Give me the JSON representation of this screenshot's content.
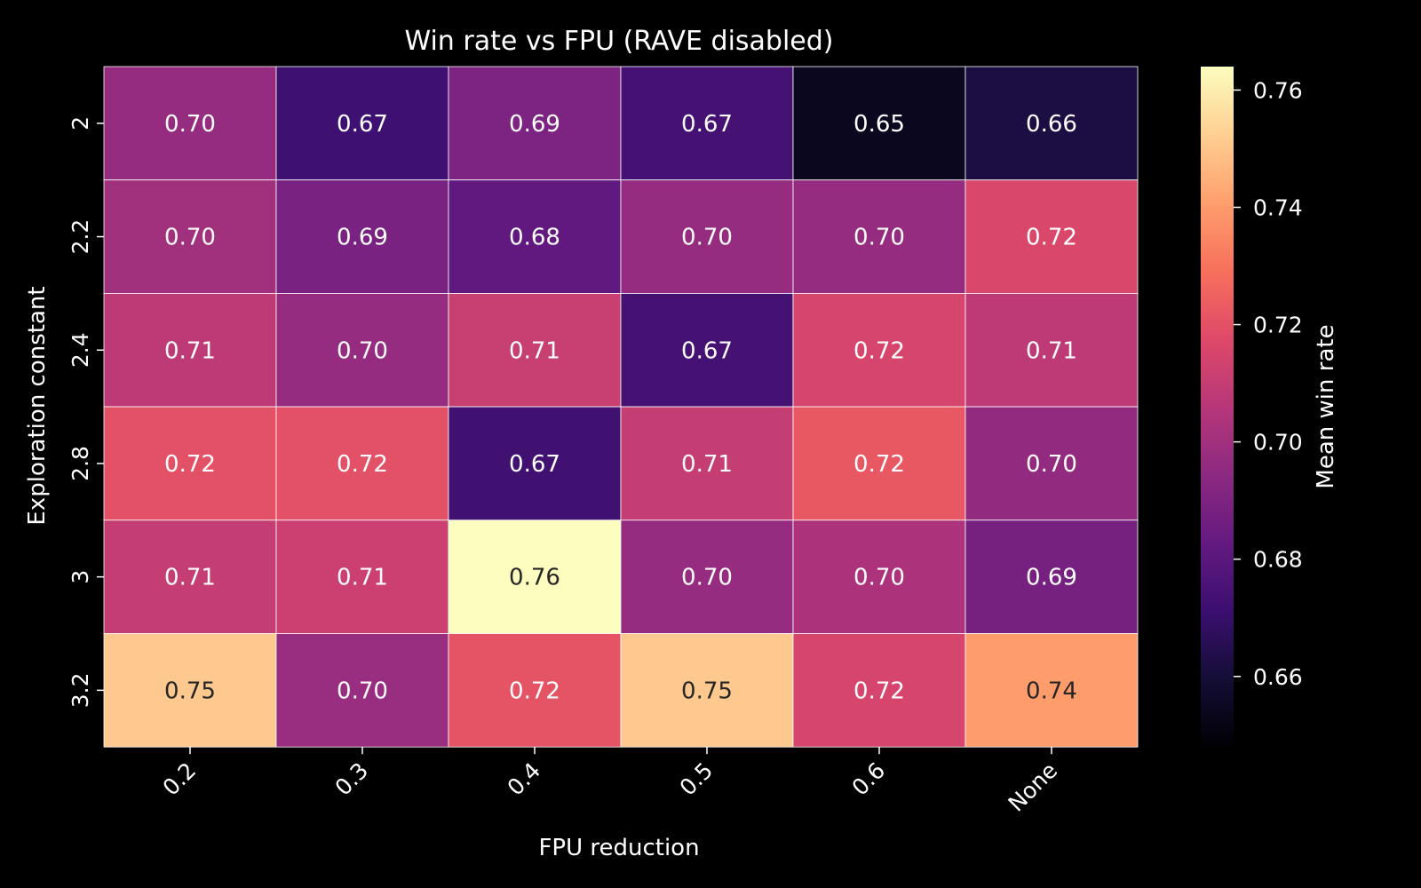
{
  "chart_data": {
    "type": "heatmap",
    "title": "Win rate vs FPU (RAVE disabled)",
    "xlabel": "FPU reduction",
    "ylabel": "Exploration constant",
    "x_categories": [
      "0.2",
      "0.3",
      "0.4",
      "0.5",
      "0.6",
      "None"
    ],
    "y_categories": [
      "2",
      "2.2",
      "2.4",
      "2.8",
      "3",
      "3.2"
    ],
    "values": [
      [
        0.697,
        0.672,
        0.69,
        0.674,
        0.654,
        0.662
      ],
      [
        0.7,
        0.689,
        0.682,
        0.697,
        0.697,
        0.716
      ],
      [
        0.708,
        0.697,
        0.711,
        0.674,
        0.715,
        0.708
      ],
      [
        0.72,
        0.72,
        0.673,
        0.71,
        0.722,
        0.696
      ],
      [
        0.71,
        0.712,
        0.764,
        0.697,
        0.703,
        0.688
      ],
      [
        0.751,
        0.698,
        0.721,
        0.751,
        0.715,
        0.74
      ]
    ],
    "value_labels": [
      [
        "0.70",
        "0.67",
        "0.69",
        "0.67",
        "0.65",
        "0.66"
      ],
      [
        "0.70",
        "0.69",
        "0.68",
        "0.70",
        "0.70",
        "0.72"
      ],
      [
        "0.71",
        "0.70",
        "0.71",
        "0.67",
        "0.72",
        "0.71"
      ],
      [
        "0.72",
        "0.72",
        "0.67",
        "0.71",
        "0.72",
        "0.70"
      ],
      [
        "0.71",
        "0.71",
        "0.76",
        "0.70",
        "0.70",
        "0.69"
      ],
      [
        "0.75",
        "0.70",
        "0.72",
        "0.75",
        "0.72",
        "0.74"
      ]
    ],
    "colorbar": {
      "label": "Mean win rate",
      "min": 0.648,
      "max": 0.764,
      "ticks": [
        0.66,
        0.68,
        0.7,
        0.72,
        0.74,
        0.76
      ],
      "tick_labels": [
        "0.66",
        "0.68",
        "0.70",
        "0.72",
        "0.74",
        "0.76"
      ],
      "colormap": "magma"
    },
    "grid": false,
    "legend": "none"
  }
}
